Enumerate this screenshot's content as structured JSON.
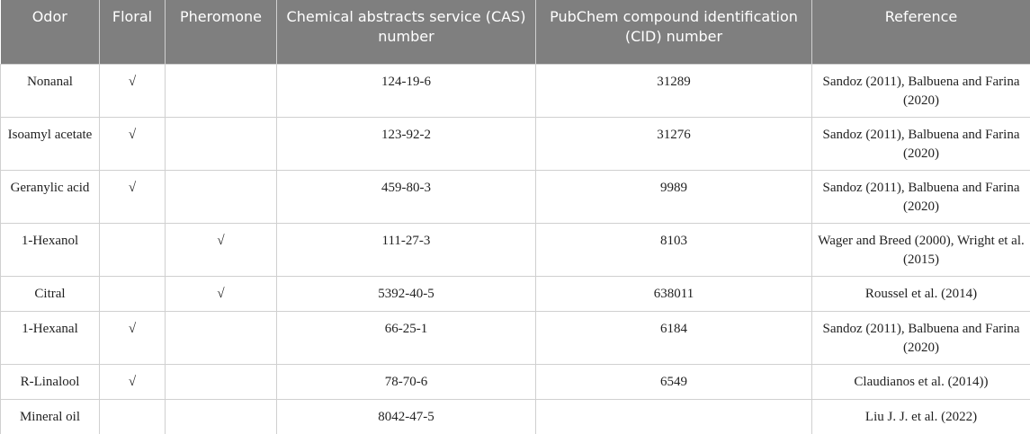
{
  "table": {
    "header": [
      "Odor",
      "Floral",
      "Pheromone",
      "Chemical abstracts service (CAS) number",
      "PubChem compound identification (CID) number",
      "Reference"
    ],
    "rows": [
      [
        "Nonanal",
        "√",
        null,
        "124-19-6",
        "31289",
        "Sandoz (2011), Balbuena and Farina (2020)"
      ],
      [
        "Isoamyl acetate",
        "√",
        null,
        "123-92-2",
        "31276",
        "Sandoz (2011), Balbuena and Farina (2020)"
      ],
      [
        "Geranylic acid",
        "√",
        null,
        "459-80-3",
        "9989",
        "Sandoz (2011), Balbuena and Farina (2020)"
      ],
      [
        "1-Hexanol",
        null,
        "√",
        "111-27-3",
        "8103",
        "Wager and Breed (2000), Wright et al. (2015)"
      ],
      [
        "Citral",
        null,
        "√",
        "5392-40-5",
        "638011",
        "Roussel et al. (2014)"
      ],
      [
        "1-Hexanal",
        "√",
        null,
        "66-25-1",
        "6184",
        "Sandoz (2011), Balbuena and Farina (2020)"
      ],
      [
        "R-Linalool",
        "√",
        null,
        "78-70-6",
        "6549",
        "Claudianos et al. (2014))"
      ],
      [
        "Mineral oil",
        null,
        null,
        "8042-47-5",
        null,
        "Liu J. J. et al. (2022)"
      ]
    ]
  }
}
